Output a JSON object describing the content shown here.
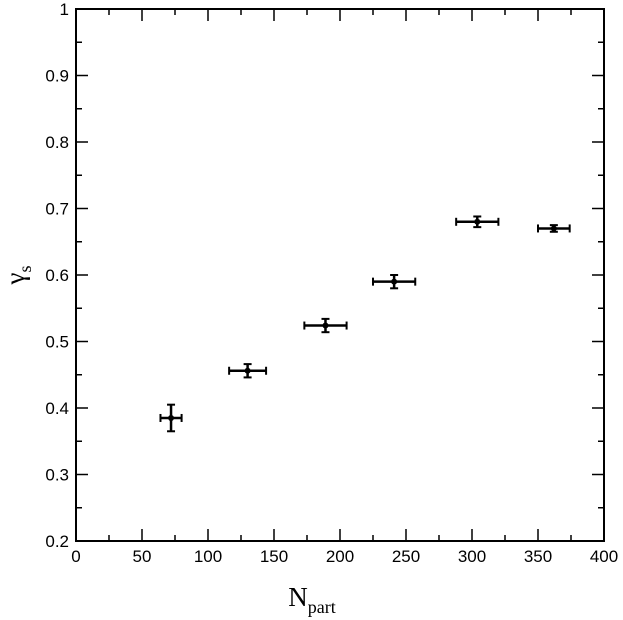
{
  "chart_data": {
    "type": "scatter",
    "xlim": [
      0,
      400
    ],
    "ylim": [
      0.2,
      1.0
    ],
    "x_ticks": [
      "0",
      "50",
      "100",
      "150",
      "200",
      "250",
      "300",
      "350",
      "400"
    ],
    "y_ticks": [
      "0.2",
      "0.3",
      "0.4",
      "0.5",
      "0.6",
      "0.7",
      "0.8",
      "0.9",
      "1"
    ],
    "xlabel_main": "N",
    "xlabel_sub": "part",
    "ylabel_main": "γ",
    "ylabel_sub": "s",
    "grid": false,
    "error_bars": true,
    "points": [
      {
        "x": 72,
        "y": 0.385,
        "xerr": 8,
        "yerr": 0.02
      },
      {
        "x": 130,
        "y": 0.456,
        "xerr": 14,
        "yerr": 0.01
      },
      {
        "x": 189,
        "y": 0.524,
        "xerr": 16,
        "yerr": 0.01
      },
      {
        "x": 241,
        "y": 0.59,
        "xerr": 16,
        "yerr": 0.01
      },
      {
        "x": 304,
        "y": 0.68,
        "xerr": 16,
        "yerr": 0.008
      },
      {
        "x": 362,
        "y": 0.67,
        "xerr": 12,
        "yerr": 0.005
      }
    ]
  }
}
